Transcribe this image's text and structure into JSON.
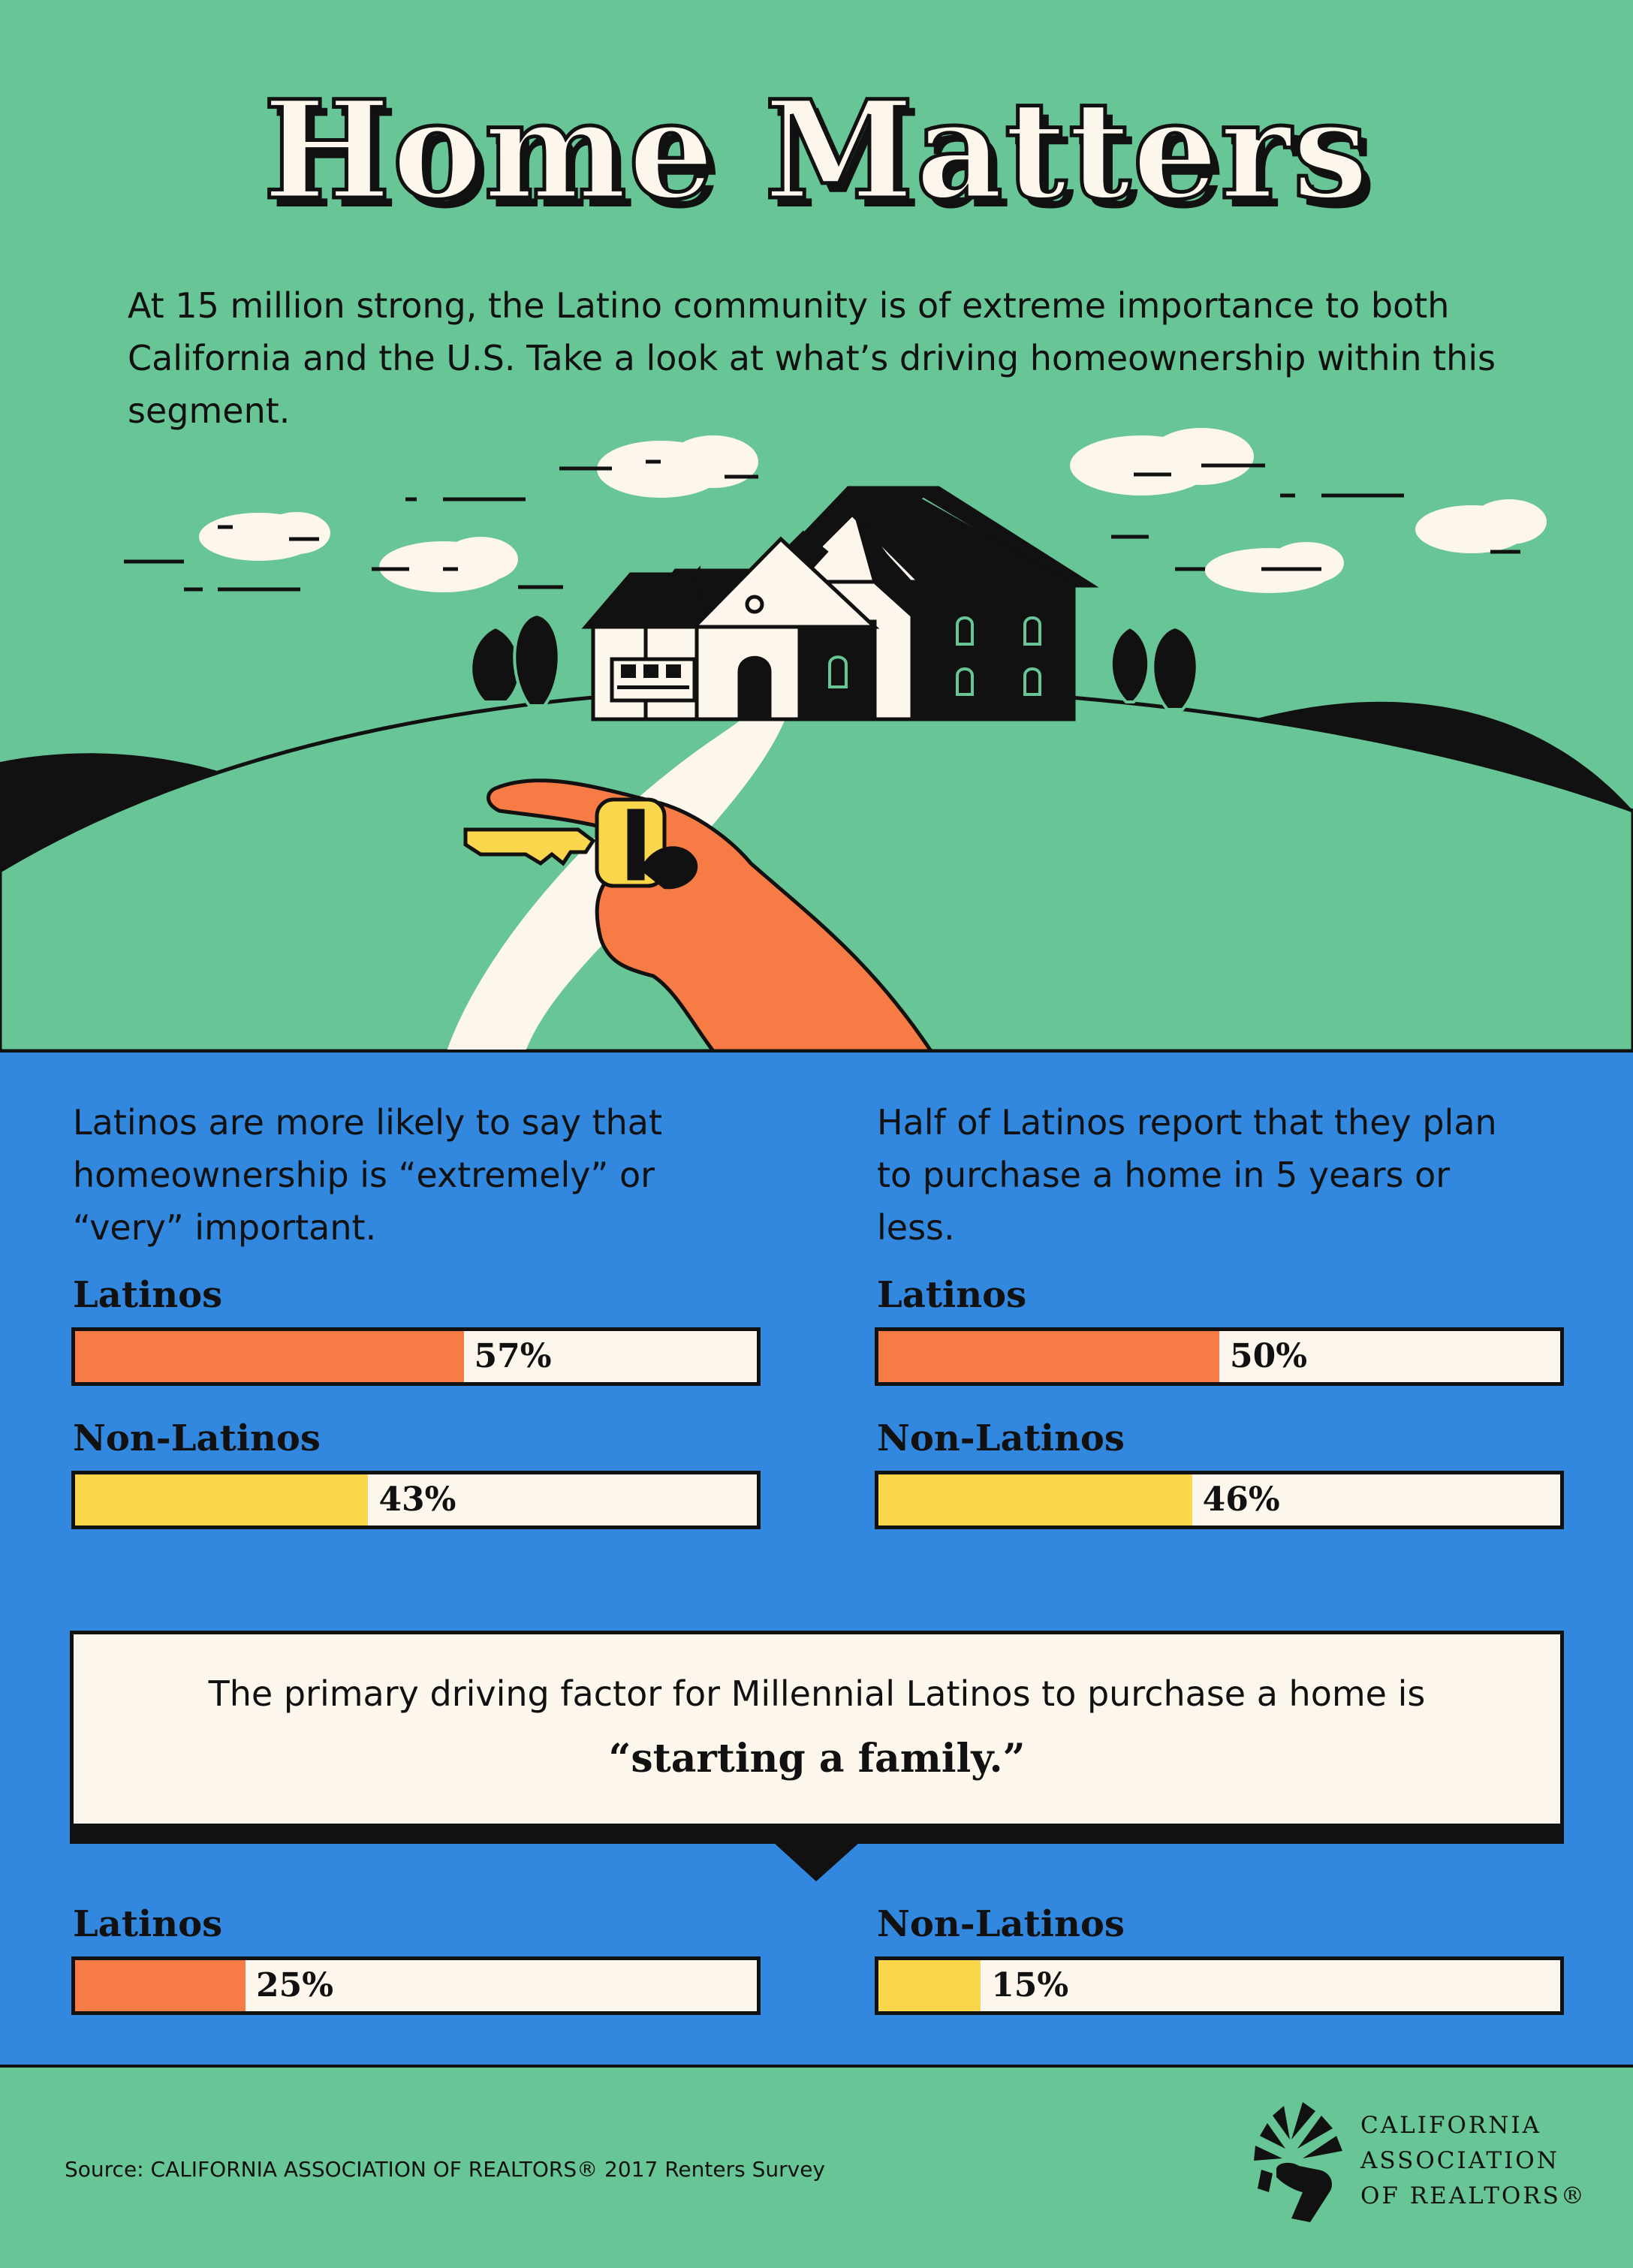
{
  "title": "Home Matters",
  "intro": "At 15 million strong, the Latino community is of extreme importance to both California and the U.S. Take a look at what’s driving homeownership within this segment.",
  "colors": {
    "background_green": "#67c596",
    "panel_blue": "#3188de",
    "latinos_orange": "#f77b45",
    "non_latinos_yellow": "#fad64c",
    "cream": "#fdf6ec"
  },
  "stat1": {
    "text": "Latinos are more likely to say that homeownership is “extremely” or “very” important."
  },
  "stat2": {
    "text": "Half of Latinos report that they plan to purchase a home in 5 years or less."
  },
  "callout": {
    "line1": "The primary driving factor for Millennial Latinos to purchase a home is",
    "line2": "“starting a family.”"
  },
  "source": "Source: CALIFORNIA ASSOCIATION OF REALTORS® 2017 Renters Survey",
  "logo": {
    "line1": "CALIFORNIA",
    "line2": "ASSOCIATION",
    "line3": "OF REALTORS®"
  },
  "chart_data": [
    {
      "type": "bar",
      "categories": [
        "Latinos",
        "Non-Latinos"
      ],
      "values": [
        57,
        43
      ],
      "labels": [
        "57%",
        "43%"
      ],
      "unit": "%",
      "ylim": [
        0,
        100
      ]
    },
    {
      "type": "bar",
      "categories": [
        "Latinos",
        "Non-Latinos"
      ],
      "values": [
        50,
        46
      ],
      "labels": [
        "50%",
        "46%"
      ],
      "unit": "%",
      "ylim": [
        0,
        100
      ]
    },
    {
      "type": "bar",
      "categories": [
        "Latinos",
        "Non-Latinos"
      ],
      "values": [
        25,
        15
      ],
      "labels": [
        "25%",
        "15%"
      ],
      "unit": "%",
      "ylim": [
        0,
        100
      ]
    }
  ]
}
